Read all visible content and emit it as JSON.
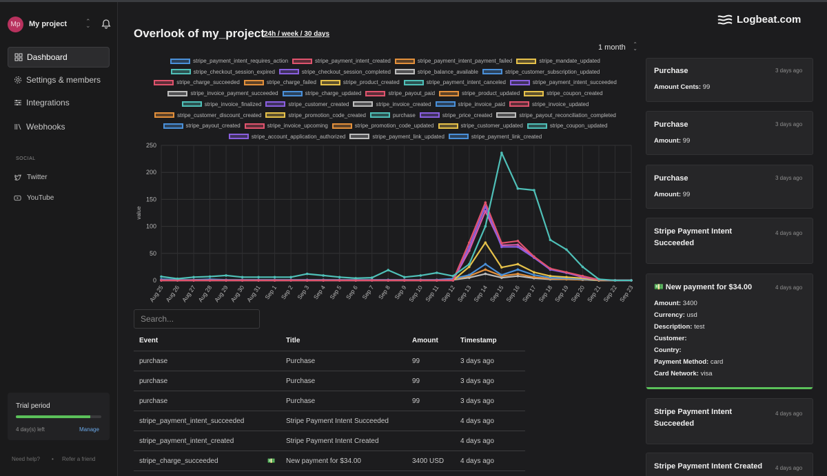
{
  "project": {
    "initials": "Mp",
    "name": "My project"
  },
  "nav": [
    {
      "label": "Dashboard",
      "icon": "dashboard-icon",
      "active": true
    },
    {
      "label": "Settings & members",
      "icon": "gear-icon"
    },
    {
      "label": "Integrations",
      "icon": "sliders-icon"
    },
    {
      "label": "Webhooks",
      "icon": "webhook-icon"
    }
  ],
  "social": {
    "heading": "SOCIAL",
    "items": [
      {
        "label": "Twitter",
        "icon": "twitter-icon"
      },
      {
        "label": "YouTube",
        "icon": "youtube-icon"
      }
    ]
  },
  "trial": {
    "title": "Trial period",
    "progress": 0.87,
    "days_left": "4 day(s) left",
    "manage": "Manage"
  },
  "footer": {
    "help": "Need help?",
    "sep": "•",
    "refer": "Refer a friend"
  },
  "header": {
    "title": "Overlook of my_project",
    "range_links": "24h / week / 30 days",
    "logo": "Logbeat.com",
    "period": "1 month"
  },
  "colors": {
    "accent_green": "#5bc15a",
    "link_blue": "#6aa7e6"
  },
  "chart_data": {
    "type": "line",
    "ylabel": "value",
    "ylim": [
      0,
      250
    ],
    "yticks": [
      0,
      50,
      100,
      150,
      200,
      250
    ],
    "grid": true,
    "legend_position": "top",
    "categories": [
      "Aug 25",
      "Aug 26",
      "Aug 27",
      "Aug 28",
      "Aug 29",
      "Aug 30",
      "Aug 31",
      "Sep 1",
      "Sep 2",
      "Sep 3",
      "Sep 4",
      "Sep 5",
      "Sep 6",
      "Sep 7",
      "Sep 8",
      "Sep 9",
      "Sep 10",
      "Sep 11",
      "Sep 12",
      "Sep 13",
      "Sep 14",
      "Sep 15",
      "Sep 16",
      "Sep 17",
      "Sep 18",
      "Sep 19",
      "Sep 20",
      "Sep 21",
      "Sep 22",
      "Sep 23"
    ],
    "legend": [
      [
        "stripe_payment_intent_requires_action",
        "stripe_payment_intent_created",
        "stripe_payment_intent_payment_failed",
        "stripe_mandate_updated"
      ],
      [
        "stripe_checkout_session_expired",
        "stripe_checkout_session_completed",
        "stripe_balance_available",
        "stripe_customer_subscription_updated"
      ],
      [
        "stripe_charge_succeeded",
        "stripe_charge_failed",
        "stripe_product_created",
        "stripe_payment_intent_canceled",
        "stripe_payment_intent_succeeded"
      ],
      [
        "stripe_invoice_payment_succeeded",
        "stripe_charge_updated",
        "stripe_payout_paid",
        "stripe_product_updated",
        "stripe_coupon_created"
      ],
      [
        "stripe_invoice_finalized",
        "stripe_customer_created",
        "stripe_invoice_created",
        "stripe_invoice_paid",
        "stripe_invoice_updated"
      ],
      [
        "stripe_customer_discount_created",
        "stripe_promotion_code_created",
        "purchase",
        "stripe_price_created",
        "stripe_payout_reconciliation_completed"
      ],
      [
        "stripe_payout_created",
        "stripe_invoice_upcoming",
        "stripe_promotion_code_updated",
        "stripe_customer_updated",
        "stripe_coupon_updated"
      ],
      [
        "stripe_account_application_authorized",
        "stripe_payment_link_updated",
        "stripe_payment_link_created"
      ]
    ],
    "palette": [
      "#4a90d9",
      "#e0536d",
      "#e3903b",
      "#e6c14a",
      "#4fc0b8",
      "#8a5fe0",
      "#bdbdbd"
    ],
    "series": [
      {
        "name": "purchase",
        "color": "#4fc0b8",
        "values": [
          7,
          3,
          6,
          7,
          9,
          6,
          6,
          6,
          6,
          12,
          9,
          6,
          4,
          5,
          19,
          6,
          9,
          14,
          8,
          30,
          100,
          236,
          170,
          167,
          75,
          57,
          25,
          2,
          0,
          0
        ]
      },
      {
        "name": "stripe_payment_intent_created",
        "color": "#e0536d",
        "values": [
          0,
          0,
          0,
          0,
          0,
          0,
          0,
          0,
          0,
          0,
          0,
          0,
          0,
          0,
          0,
          0,
          0,
          0,
          0,
          70,
          144,
          69,
          73,
          44,
          22,
          15,
          8,
          1,
          0,
          0
        ]
      },
      {
        "name": "stripe_payment_intent_succeeded",
        "color": "#8a5fe0",
        "values": [
          0,
          0,
          0,
          0,
          0,
          0,
          0,
          0,
          0,
          0,
          0,
          0,
          0,
          0,
          0,
          0,
          0,
          0,
          0,
          62,
          137,
          62,
          62,
          42,
          20,
          14,
          7,
          1,
          0,
          0
        ]
      },
      {
        "name": "stripe_charge_succeeded",
        "color": "#d85aa8",
        "values": [
          0,
          0,
          0,
          0,
          0,
          0,
          0,
          0,
          0,
          0,
          0,
          0,
          0,
          0,
          0,
          0,
          0,
          0,
          0,
          55,
          128,
          65,
          66,
          44,
          21,
          14,
          6,
          1,
          0,
          0
        ]
      },
      {
        "name": "stripe_customer_created",
        "color": "#e6c14a",
        "values": [
          0,
          0,
          0,
          0,
          0,
          0,
          0,
          0,
          0,
          0,
          0,
          0,
          0,
          0,
          0,
          0,
          0,
          0,
          0,
          25,
          70,
          24,
          30,
          15,
          8,
          6,
          4,
          0,
          0,
          0
        ]
      },
      {
        "name": "stripe_invoice_paid",
        "color": "#4a90d9",
        "values": [
          2,
          1,
          1,
          2,
          1,
          1,
          1,
          1,
          1,
          1,
          1,
          1,
          1,
          1,
          1,
          1,
          1,
          1,
          3,
          10,
          30,
          10,
          20,
          10,
          5,
          4,
          2,
          0,
          0,
          0
        ]
      },
      {
        "name": "stripe_charge_failed",
        "color": "#e3903b",
        "values": [
          0,
          0,
          0,
          0,
          0,
          0,
          0,
          0,
          0,
          0,
          0,
          0,
          0,
          0,
          0,
          0,
          0,
          0,
          2,
          8,
          20,
          8,
          12,
          6,
          3,
          2,
          1,
          0,
          0,
          0
        ]
      },
      {
        "name": "stripe_balance_available",
        "color": "#bdbdbd",
        "values": [
          0,
          0,
          0,
          0,
          0,
          0,
          0,
          0,
          0,
          0,
          0,
          0,
          0,
          0,
          0,
          0,
          0,
          0,
          1,
          5,
          12,
          5,
          8,
          4,
          2,
          2,
          1,
          0,
          0,
          0
        ]
      }
    ]
  },
  "search": {
    "placeholder": "Search..."
  },
  "table": {
    "headers": {
      "event": "Event",
      "title": "Title",
      "amount": "Amount",
      "timestamp": "Timestamp"
    },
    "rows": [
      {
        "event": "purchase",
        "emoji": "",
        "title": "Purchase",
        "amount": "99",
        "timestamp": "3 days ago"
      },
      {
        "event": "purchase",
        "emoji": "",
        "title": "Purchase",
        "amount": "99",
        "timestamp": "3 days ago"
      },
      {
        "event": "purchase",
        "emoji": "",
        "title": "Purchase",
        "amount": "99",
        "timestamp": "3 days ago"
      },
      {
        "event": "stripe_payment_intent_succeeded",
        "emoji": "",
        "title": "Stripe Payment Intent Succeeded",
        "amount": "",
        "timestamp": "4 days ago"
      },
      {
        "event": "stripe_payment_intent_created",
        "emoji": "",
        "title": "Stripe Payment Intent Created",
        "amount": "",
        "timestamp": "4 days ago"
      },
      {
        "event": "stripe_charge_succeeded",
        "emoji": "💵",
        "title": "New payment for $34.00",
        "amount": "3400 USD",
        "timestamp": "4 days ago"
      }
    ]
  },
  "feed": [
    {
      "title": "Purchase",
      "time": "3 days ago",
      "fields": [
        {
          "k": "Amount Cents:",
          "v": "99"
        }
      ]
    },
    {
      "title": "Purchase",
      "time": "3 days ago",
      "fields": [
        {
          "k": "Amount:",
          "v": "99"
        }
      ]
    },
    {
      "title": "Purchase",
      "time": "3 days ago",
      "fields": [
        {
          "k": "Amount:",
          "v": "99"
        }
      ]
    },
    {
      "title": "Stripe Payment Intent Succeeded",
      "time": "4 days ago",
      "fields": []
    },
    {
      "title": "💵 New payment for $34.00",
      "time": "4 days ago",
      "fields": [
        {
          "k": "Amount:",
          "v": "3400"
        },
        {
          "k": "Currency:",
          "v": "usd"
        },
        {
          "k": "Description:",
          "v": "test"
        },
        {
          "k": "Customer:",
          "v": ""
        },
        {
          "k": "Country:",
          "v": ""
        },
        {
          "k": "Payment Method:",
          "v": "card"
        },
        {
          "k": "Card Network:",
          "v": "visa"
        }
      ]
    },
    {
      "title": "Stripe Payment Intent Succeeded",
      "time": "4 days ago",
      "fields": []
    },
    {
      "title": "Stripe Payment Intent Created",
      "time": "4 days ago",
      "fields": []
    }
  ]
}
